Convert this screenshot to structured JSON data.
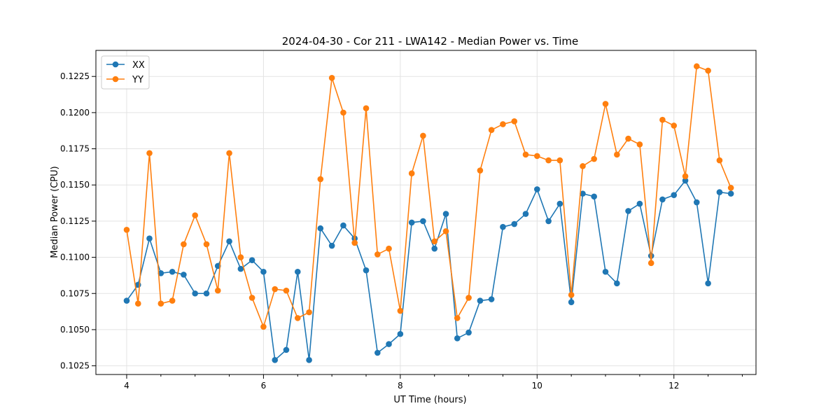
{
  "chart_data": {
    "type": "line",
    "title": "2024-04-30 - Cor 211 - LWA142 - Median Power vs. Time",
    "xlabel": "UT Time (hours)",
    "ylabel": "Median Power (CPU)",
    "xlim": [
      3.55,
      13.2
    ],
    "ylim": [
      0.1019,
      0.1243
    ],
    "xticks": [
      4,
      6,
      8,
      10,
      12
    ],
    "xtick_labels": [
      "4",
      "6",
      "8",
      "10",
      "12"
    ],
    "xminor_step": 0.5,
    "yticks": [
      0.1025,
      0.105,
      0.1075,
      0.11,
      0.1125,
      0.115,
      0.1175,
      0.12,
      0.1225
    ],
    "ytick_labels": [
      "0.1025",
      "0.1050",
      "0.1075",
      "0.1100",
      "0.1125",
      "0.1150",
      "0.1175",
      "0.1200",
      "0.1225"
    ],
    "grid": true,
    "legend_position": "top-left",
    "x": [
      4.0,
      4.167,
      4.333,
      4.5,
      4.667,
      4.833,
      5.0,
      5.167,
      5.333,
      5.5,
      5.667,
      5.833,
      6.0,
      6.167,
      6.333,
      6.5,
      6.667,
      6.833,
      7.0,
      7.167,
      7.333,
      7.5,
      7.667,
      7.833,
      8.0,
      8.167,
      8.333,
      8.5,
      8.667,
      8.833,
      9.0,
      9.167,
      9.333,
      9.5,
      9.667,
      9.833,
      10.0,
      10.167,
      10.333,
      10.5,
      10.667,
      10.833,
      11.0,
      11.167,
      11.333,
      11.5,
      11.667,
      11.833,
      12.0,
      12.167,
      12.333,
      12.5,
      12.667,
      12.833
    ],
    "series": [
      {
        "name": "XX",
        "color": "#1f77b4",
        "values": [
          0.107,
          0.1081,
          0.1113,
          0.1089,
          0.109,
          0.1088,
          0.1075,
          0.1075,
          0.1094,
          0.1111,
          0.1092,
          0.1098,
          0.109,
          0.1029,
          0.1036,
          0.109,
          0.1029,
          0.112,
          0.1108,
          0.1122,
          0.1113,
          0.1091,
          0.1034,
          0.104,
          0.1047,
          0.1124,
          0.1125,
          0.1106,
          0.113,
          0.1044,
          0.1048,
          0.107,
          0.1071,
          0.1121,
          0.1123,
          0.113,
          0.1147,
          0.1125,
          0.1137,
          0.1069,
          0.1144,
          0.1142,
          0.109,
          0.1082,
          0.1132,
          0.1137,
          0.1101,
          0.114,
          0.1143,
          0.1153,
          0.1138,
          0.1082,
          0.1145,
          0.1144
        ]
      },
      {
        "name": "YY",
        "color": "#ff7f0e",
        "values": [
          0.1119,
          0.1068,
          0.1172,
          0.1068,
          0.107,
          0.1109,
          0.1129,
          0.1109,
          0.1077,
          0.1172,
          0.11,
          0.1072,
          0.1052,
          0.1078,
          0.1077,
          0.1058,
          0.1062,
          0.1154,
          0.1224,
          0.12,
          0.111,
          0.1203,
          0.1102,
          0.1106,
          0.1063,
          0.1158,
          0.1184,
          0.1111,
          0.1118,
          0.1058,
          0.1072,
          0.116,
          0.1188,
          0.1192,
          0.1194,
          0.1171,
          0.117,
          0.1167,
          0.1167,
          0.1074,
          0.1163,
          0.1168,
          0.1206,
          0.1171,
          0.1182,
          0.1178,
          0.1096,
          0.1195,
          0.1191,
          0.1156,
          0.1232,
          0.1229,
          0.1167,
          0.1148
        ]
      }
    ]
  }
}
